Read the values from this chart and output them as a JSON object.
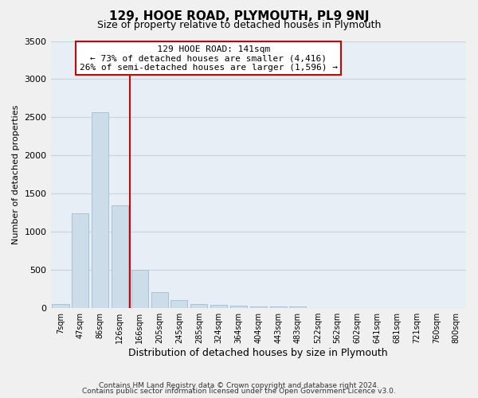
{
  "title": "129, HOOE ROAD, PLYMOUTH, PL9 9NJ",
  "subtitle": "Size of property relative to detached houses in Plymouth",
  "xlabel": "Distribution of detached houses by size in Plymouth",
  "ylabel": "Number of detached properties",
  "bar_values": [
    50,
    1240,
    2570,
    1350,
    500,
    210,
    110,
    50,
    45,
    30,
    25,
    20,
    25,
    0,
    0,
    0,
    0,
    0,
    0,
    0,
    0
  ],
  "bar_labels": [
    "7sqm",
    "47sqm",
    "86sqm",
    "126sqm",
    "166sqm",
    "205sqm",
    "245sqm",
    "285sqm",
    "324sqm",
    "364sqm",
    "404sqm",
    "443sqm",
    "483sqm",
    "522sqm",
    "562sqm",
    "602sqm",
    "641sqm",
    "681sqm",
    "721sqm",
    "760sqm",
    "800sqm"
  ],
  "ylim": [
    0,
    3500
  ],
  "yticks": [
    0,
    500,
    1000,
    1500,
    2000,
    2500,
    3000,
    3500
  ],
  "annotation_title": "129 HOOE ROAD: 141sqm",
  "annotation_line1": "← 73% of detached houses are smaller (4,416)",
  "annotation_line2": "26% of semi-detached houses are larger (1,596) →",
  "bar_color": "#ccdce8",
  "bar_edge_color": "#aac0d4",
  "red_line_color": "#cc0000",
  "annotation_box_facecolor": "#ffffff",
  "annotation_box_edgecolor": "#cc0000",
  "grid_color": "#c8d4e0",
  "bg_color": "#e8eef5",
  "fig_bg_color": "#f0f0f0",
  "footer_line1": "Contains HM Land Registry data © Crown copyright and database right 2024.",
  "footer_line2": "Contains public sector information licensed under the Open Government Licence v3.0.",
  "title_fontsize": 11,
  "subtitle_fontsize": 9,
  "ylabel_fontsize": 8,
  "xlabel_fontsize": 9,
  "ytick_fontsize": 8,
  "xtick_fontsize": 7,
  "annotation_fontsize": 8,
  "footer_fontsize": 6.5
}
